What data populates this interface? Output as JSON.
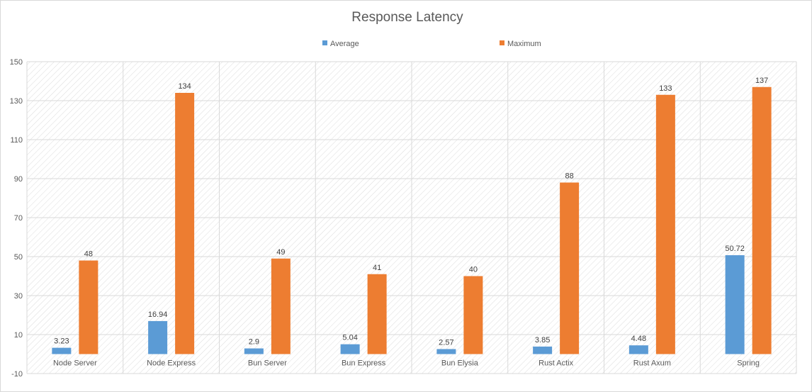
{
  "chart_data": {
    "type": "bar",
    "title": "Response Latency",
    "categories": [
      "Node Server",
      "Node Express",
      "Bun Server",
      "Bun Express",
      "Bun Elysia",
      "Rust Actix",
      "Rust Axum",
      "Spring"
    ],
    "series": [
      {
        "name": "Average",
        "color": "#5b9bd5",
        "values": [
          3.23,
          16.94,
          2.9,
          5.04,
          2.57,
          3.85,
          4.48,
          50.72
        ]
      },
      {
        "name": "Maximum",
        "color": "#ed7d31",
        "values": [
          48,
          134,
          49,
          41,
          40,
          88,
          133,
          137
        ]
      }
    ],
    "ylim": [
      -10,
      150
    ],
    "yticks": [
      -10,
      10,
      30,
      50,
      70,
      90,
      110,
      130,
      150
    ],
    "grid": true,
    "legend": "top-center",
    "xlabel": "",
    "ylabel": ""
  }
}
